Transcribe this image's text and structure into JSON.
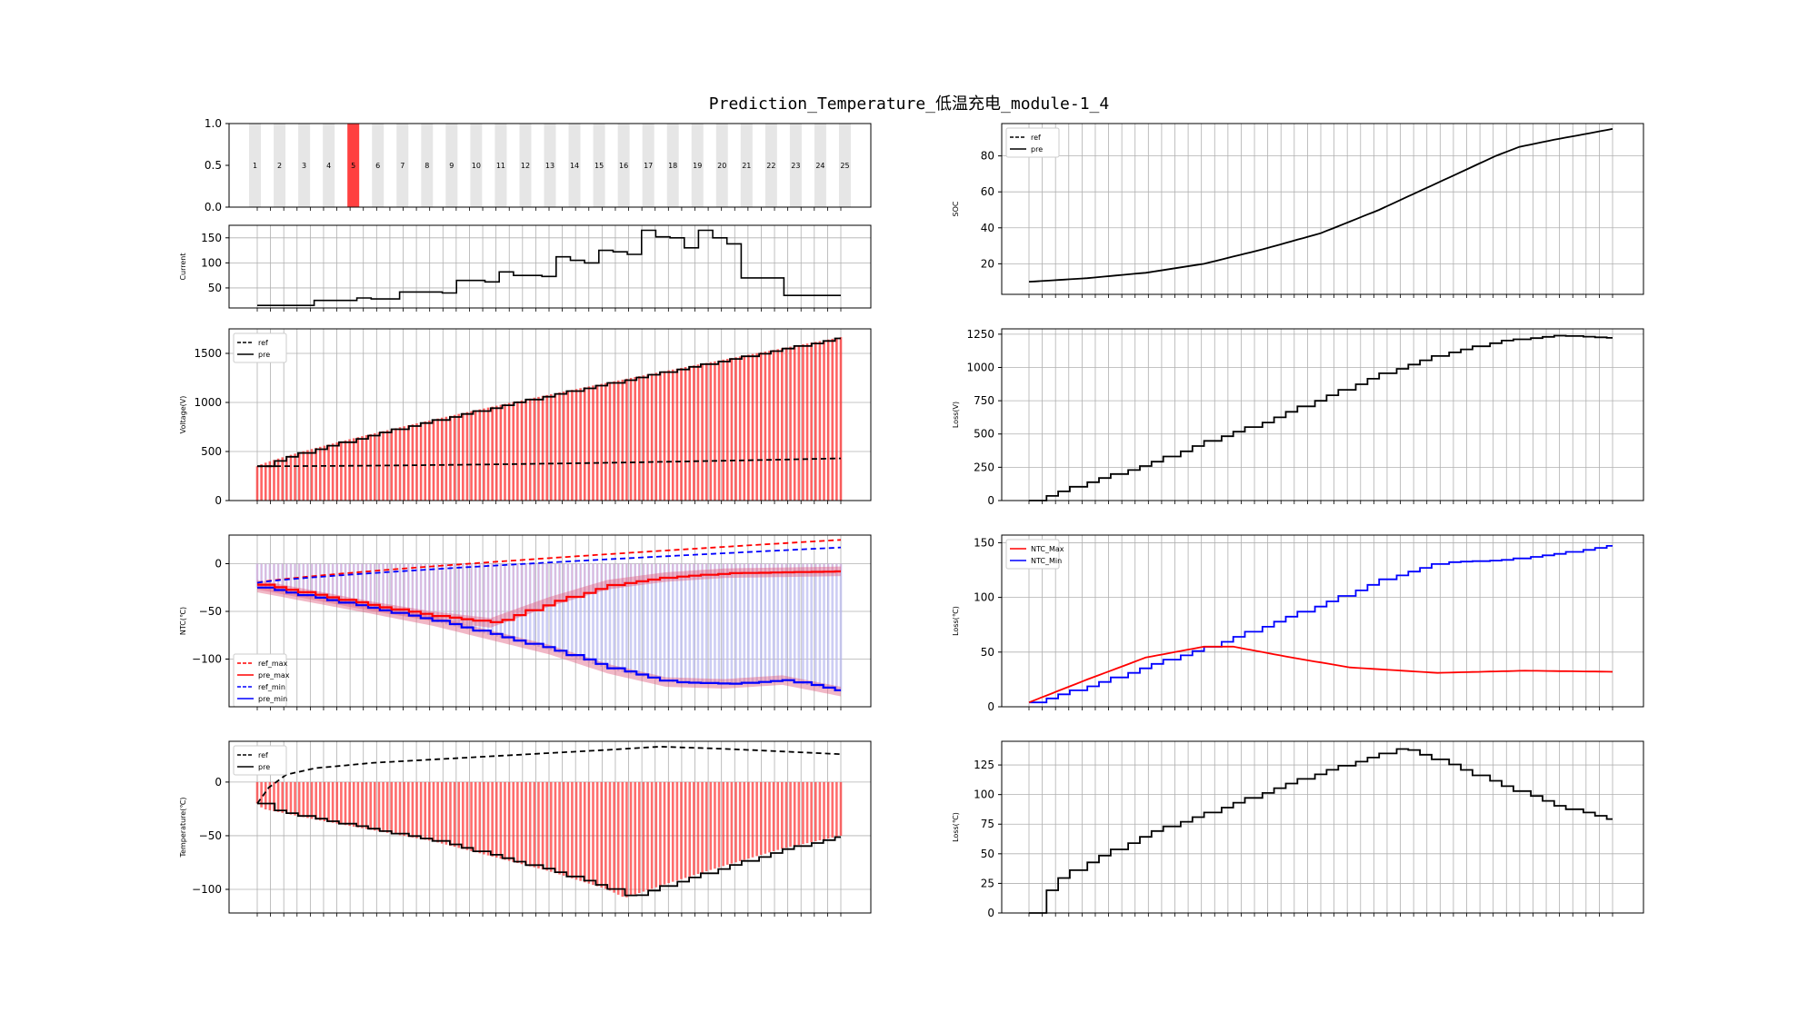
{
  "figure": {
    "title": "Prediction_Temperature_低温充电_module-1_4"
  },
  "colors": {
    "ref": "#000000",
    "red": "#ff0000",
    "blue": "#0000ff",
    "highlight": "#ff4040",
    "band": "#e6e6e6"
  },
  "chart_data": [
    {
      "id": "module_selector",
      "type": "bar",
      "ylabel": "",
      "yticks": [
        "0.0",
        "0.5",
        "1.0"
      ],
      "ylim": [
        0,
        1
      ],
      "categories": [
        "1",
        "2",
        "3",
        "4",
        "5",
        "6",
        "7",
        "8",
        "9",
        "10",
        "11",
        "12",
        "13",
        "14",
        "15",
        "16",
        "17",
        "18",
        "19",
        "20",
        "21",
        "22",
        "23",
        "24",
        "25"
      ],
      "values": [
        1,
        1,
        1,
        1,
        1,
        1,
        1,
        1,
        1,
        1,
        1,
        1,
        1,
        1,
        1,
        1,
        1,
        1,
        1,
        1,
        1,
        1,
        1,
        1,
        1
      ],
      "highlighted": "5"
    },
    {
      "id": "current",
      "type": "line",
      "ylabel": "Current",
      "ylim": [
        10,
        175
      ],
      "yticks": [
        "50",
        "100",
        "150"
      ],
      "x": [
        0,
        1,
        2,
        3,
        4,
        5,
        6,
        7,
        8,
        9,
        10,
        11,
        12,
        13,
        14,
        15,
        16,
        17,
        18,
        19,
        20,
        21,
        22,
        23,
        24,
        25,
        26,
        27,
        28,
        29,
        30,
        31,
        32,
        33,
        34,
        35,
        36,
        37,
        38,
        39,
        40
      ],
      "values": [
        15,
        15,
        15,
        15,
        25,
        25,
        25,
        30,
        28,
        28,
        42,
        42,
        42,
        40,
        65,
        65,
        62,
        82,
        75,
        75,
        73,
        112,
        105,
        100,
        125,
        122,
        117,
        165,
        152,
        150,
        130,
        165,
        150,
        138,
        70,
        70,
        70,
        35,
        35,
        35,
        35
      ],
      "grid": true
    },
    {
      "id": "voltage",
      "type": "line",
      "ylabel": "Voltage(V)",
      "ylim": [
        0,
        1750
      ],
      "yticks": [
        "0",
        "500",
        "1000",
        "1500"
      ],
      "legend": "upper-left",
      "series": [
        {
          "name": "ref",
          "style": "dashed"
        },
        {
          "name": "pre",
          "style": "solid"
        }
      ],
      "x_count": 101,
      "ref_range": [
        350,
        430
      ],
      "pre_range": [
        350,
        1665
      ],
      "grid": true
    },
    {
      "id": "ntc",
      "type": "line",
      "ylabel": "NTC(℃)",
      "ylim": [
        -150,
        30
      ],
      "yticks": [
        "0",
        "−50",
        "−100"
      ],
      "legend": "lower-left",
      "series": [
        {
          "name": "ref_max",
          "color": "#ff0000",
          "style": "dashed"
        },
        {
          "name": "pre_max",
          "color": "#ff0000",
          "style": "solid"
        },
        {
          "name": "ref_min",
          "color": "#0000ff",
          "style": "dashed"
        },
        {
          "name": "pre_min",
          "color": "#0000ff",
          "style": "solid"
        }
      ],
      "ref_max_range": [
        -20,
        25
      ],
      "ref_min_range": [
        -20,
        17
      ],
      "pre_max_points": [
        [
          0,
          -22
        ],
        [
          20,
          -45
        ],
        [
          30,
          -55
        ],
        [
          40,
          -62
        ],
        [
          50,
          -40
        ],
        [
          60,
          -22
        ],
        [
          70,
          -14
        ],
        [
          80,
          -10
        ],
        [
          90,
          -9
        ],
        [
          100,
          -8
        ]
      ],
      "pre_min_points": [
        [
          0,
          -25
        ],
        [
          20,
          -48
        ],
        [
          30,
          -60
        ],
        [
          40,
          -75
        ],
        [
          50,
          -90
        ],
        [
          60,
          -110
        ],
        [
          70,
          -124
        ],
        [
          80,
          -126
        ],
        [
          90,
          -122
        ],
        [
          100,
          -134
        ]
      ],
      "grid": true
    },
    {
      "id": "temperature",
      "type": "line",
      "ylabel": "Temperature(℃)",
      "ylim": [
        -122,
        38
      ],
      "yticks": [
        "0",
        "−50",
        "−100"
      ],
      "legend": "upper-left",
      "series": [
        {
          "name": "ref",
          "style": "dashed"
        },
        {
          "name": "pre",
          "style": "solid"
        }
      ],
      "ref_points": [
        [
          0,
          -20
        ],
        [
          2,
          -5
        ],
        [
          5,
          7
        ],
        [
          10,
          13
        ],
        [
          20,
          18
        ],
        [
          40,
          24
        ],
        [
          60,
          30
        ],
        [
          69,
          33
        ],
        [
          80,
          31
        ],
        [
          100,
          26
        ]
      ],
      "pre_points": [
        [
          0,
          -20
        ],
        [
          1,
          -25
        ],
        [
          10,
          -35
        ],
        [
          30,
          -55
        ],
        [
          50,
          -83
        ],
        [
          60,
          -100
        ],
        [
          63,
          -108
        ],
        [
          70,
          -95
        ],
        [
          80,
          -78
        ],
        [
          90,
          -62
        ],
        [
          100,
          -50
        ]
      ],
      "grid": true
    },
    {
      "id": "soc",
      "type": "line",
      "ylabel": "SOC",
      "ylim": [
        3,
        98
      ],
      "yticks": [
        "20",
        "40",
        "60",
        "80"
      ],
      "legend": "upper-left",
      "series": [
        {
          "name": "ref",
          "style": "dashed"
        },
        {
          "name": "pre",
          "style": "solid"
        }
      ],
      "pre_points": [
        [
          0,
          10
        ],
        [
          10,
          12
        ],
        [
          20,
          15
        ],
        [
          30,
          20
        ],
        [
          40,
          28
        ],
        [
          50,
          37
        ],
        [
          60,
          50
        ],
        [
          70,
          65
        ],
        [
          80,
          80
        ],
        [
          84,
          85
        ],
        [
          90,
          89
        ],
        [
          100,
          95
        ]
      ],
      "grid": true
    },
    {
      "id": "loss_v",
      "type": "line",
      "ylabel": "Loss(V)",
      "ylim": [
        0,
        1290
      ],
      "yticks": [
        "0",
        "250",
        "500",
        "750",
        "1000",
        "1250"
      ],
      "points": [
        [
          0,
          0
        ],
        [
          10,
          150
        ],
        [
          20,
          280
        ],
        [
          30,
          450
        ],
        [
          40,
          600
        ],
        [
          50,
          780
        ],
        [
          60,
          960
        ],
        [
          70,
          1100
        ],
        [
          80,
          1200
        ],
        [
          90,
          1240
        ],
        [
          100,
          1220
        ]
      ],
      "grid": true
    },
    {
      "id": "loss_ntc",
      "type": "line",
      "ylabel": "Loss(℃)",
      "ylim": [
        0,
        157
      ],
      "yticks": [
        "0",
        "50",
        "100",
        "150"
      ],
      "legend": "upper-left",
      "series": [
        {
          "name": "NTC_Max",
          "color": "#ff0000"
        },
        {
          "name": "NTC_Min",
          "color": "#0000ff"
        }
      ],
      "max_points": [
        [
          0,
          4
        ],
        [
          10,
          25
        ],
        [
          20,
          45
        ],
        [
          30,
          55
        ],
        [
          35,
          55
        ],
        [
          45,
          45
        ],
        [
          55,
          36
        ],
        [
          70,
          31
        ],
        [
          85,
          33
        ],
        [
          100,
          32
        ]
      ],
      "min_points": [
        [
          0,
          4
        ],
        [
          10,
          20
        ],
        [
          20,
          38
        ],
        [
          30,
          55
        ],
        [
          40,
          75
        ],
        [
          50,
          95
        ],
        [
          60,
          117
        ],
        [
          70,
          132
        ],
        [
          80,
          134
        ],
        [
          90,
          140
        ],
        [
          100,
          148
        ]
      ],
      "grid": true
    },
    {
      "id": "loss_temp",
      "type": "line",
      "ylabel": "Loss(℃)",
      "ylim": [
        0,
        145
      ],
      "yticks": [
        "0",
        "25",
        "50",
        "75",
        "100",
        "125"
      ],
      "points": [
        [
          0,
          0
        ],
        [
          3,
          25
        ],
        [
          10,
          45
        ],
        [
          20,
          68
        ],
        [
          30,
          85
        ],
        [
          40,
          103
        ],
        [
          50,
          120
        ],
        [
          60,
          135
        ],
        [
          63,
          140
        ],
        [
          70,
          128
        ],
        [
          80,
          108
        ],
        [
          90,
          90
        ],
        [
          100,
          78
        ]
      ],
      "grid": true
    }
  ]
}
